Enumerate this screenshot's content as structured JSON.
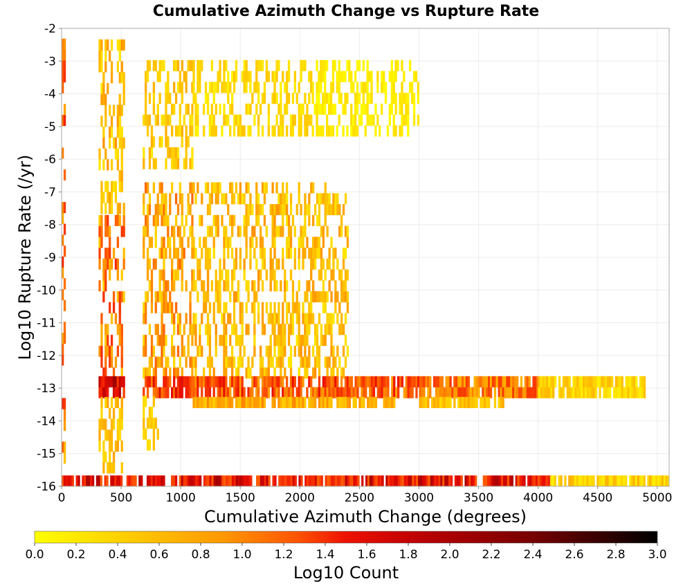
{
  "chart_data": {
    "type": "heatmap",
    "title": "Cumulative Azimuth Change vs Rupture Rate",
    "xlabel": "Cumulative Azimuth Change (degrees)",
    "ylabel": "Log10 Rupture Rate (/yr)",
    "xlim": [
      0,
      5100
    ],
    "ylim": [
      -16,
      -2
    ],
    "x_ticks": [
      0,
      500,
      1000,
      1500,
      2000,
      2500,
      3000,
      3500,
      4000,
      4500,
      5000
    ],
    "y_ticks": [
      -2,
      -3,
      -4,
      -5,
      -6,
      -7,
      -8,
      -9,
      -10,
      -11,
      -12,
      -13,
      -14,
      -15,
      -16
    ],
    "grid": true,
    "colorbar": {
      "label": "Log10 Count",
      "range": [
        0.0,
        3.0
      ],
      "ticks": [
        "0.0",
        "0.2",
        "0.4",
        "0.6",
        "0.8",
        "1.0",
        "1.2",
        "1.4",
        "1.6",
        "1.8",
        "2.0",
        "2.2",
        "2.4",
        "2.6",
        "2.8",
        "3.0"
      ],
      "colors": [
        "#ffff00",
        "#ffcc00",
        "#ff9900",
        "#ff5500",
        "#ee1100",
        "#bb0000",
        "#770000",
        "#000000"
      ],
      "placement": "bottom"
    },
    "bin_size": {
      "x": 17,
      "y": 0.333
    },
    "cell_regions": [
      {
        "x": [
          0,
          30
        ],
        "y": [
          -2.3,
          -15.3
        ],
        "value": [
          0.5,
          1.7
        ]
      },
      {
        "x": [
          310,
          520
        ],
        "y": [
          -2.6,
          -8.0
        ],
        "value": [
          0.2,
          0.9
        ]
      },
      {
        "x": [
          310,
          520
        ],
        "y": [
          -8.0,
          -12.7
        ],
        "value": [
          0.4,
          1.6
        ]
      },
      {
        "x": [
          310,
          520
        ],
        "y": [
          -12.7,
          -13.3
        ],
        "value": [
          1.4,
          2.4
        ]
      },
      {
        "x": [
          310,
          500
        ],
        "y": [
          -13.3,
          -15.6
        ],
        "value": [
          0.3,
          0.8
        ]
      },
      {
        "x": [
          680,
          1100
        ],
        "y": [
          -3.3,
          -6.3
        ],
        "value": [
          0.2,
          0.7
        ]
      },
      {
        "x": [
          680,
          1100
        ],
        "y": [
          -6.8,
          -12.7
        ],
        "value": [
          0.3,
          1.2
        ]
      },
      {
        "x": [
          680,
          1100
        ],
        "y": [
          -12.7,
          -13.3
        ],
        "value": [
          1.0,
          2.0
        ]
      },
      {
        "x": [
          680,
          800
        ],
        "y": [
          -13.3,
          -14.9
        ],
        "value": [
          0.2,
          0.6
        ]
      },
      {
        "x": [
          1100,
          2100
        ],
        "y": [
          -3.3,
          -5.3
        ],
        "value": [
          0.1,
          0.5
        ]
      },
      {
        "x": [
          1100,
          2400
        ],
        "y": [
          -6.8,
          -12.7
        ],
        "value": [
          0.2,
          0.9
        ]
      },
      {
        "x": [
          1100,
          3000
        ],
        "y": [
          -12.7,
          -13.3
        ],
        "value": [
          0.8,
          1.8
        ]
      },
      {
        "x": [
          1100,
          2800
        ],
        "y": [
          -13.3,
          -13.6
        ],
        "value": [
          0.4,
          1.0
        ]
      },
      {
        "x": [
          2100,
          3000
        ],
        "y": [
          -3.3,
          -5.3
        ],
        "value": [
          0.0,
          0.3
        ]
      },
      {
        "x": [
          3000,
          4000
        ],
        "y": [
          -12.7,
          -13.3
        ],
        "value": [
          0.6,
          1.5
        ]
      },
      {
        "x": [
          3000,
          3700
        ],
        "y": [
          -13.3,
          -13.6
        ],
        "value": [
          0.3,
          0.8
        ]
      },
      {
        "x": [
          4000,
          4900
        ],
        "y": [
          -12.7,
          -13.3
        ],
        "value": [
          0.1,
          0.6
        ]
      },
      {
        "x": [
          0,
          4100
        ],
        "y": [
          -15.7,
          -16.0
        ],
        "value": [
          1.2,
          2.3
        ]
      },
      {
        "x": [
          4100,
          5100
        ],
        "y": [
          -15.7,
          -16.0
        ],
        "value": [
          0.1,
          0.7
        ]
      }
    ]
  }
}
